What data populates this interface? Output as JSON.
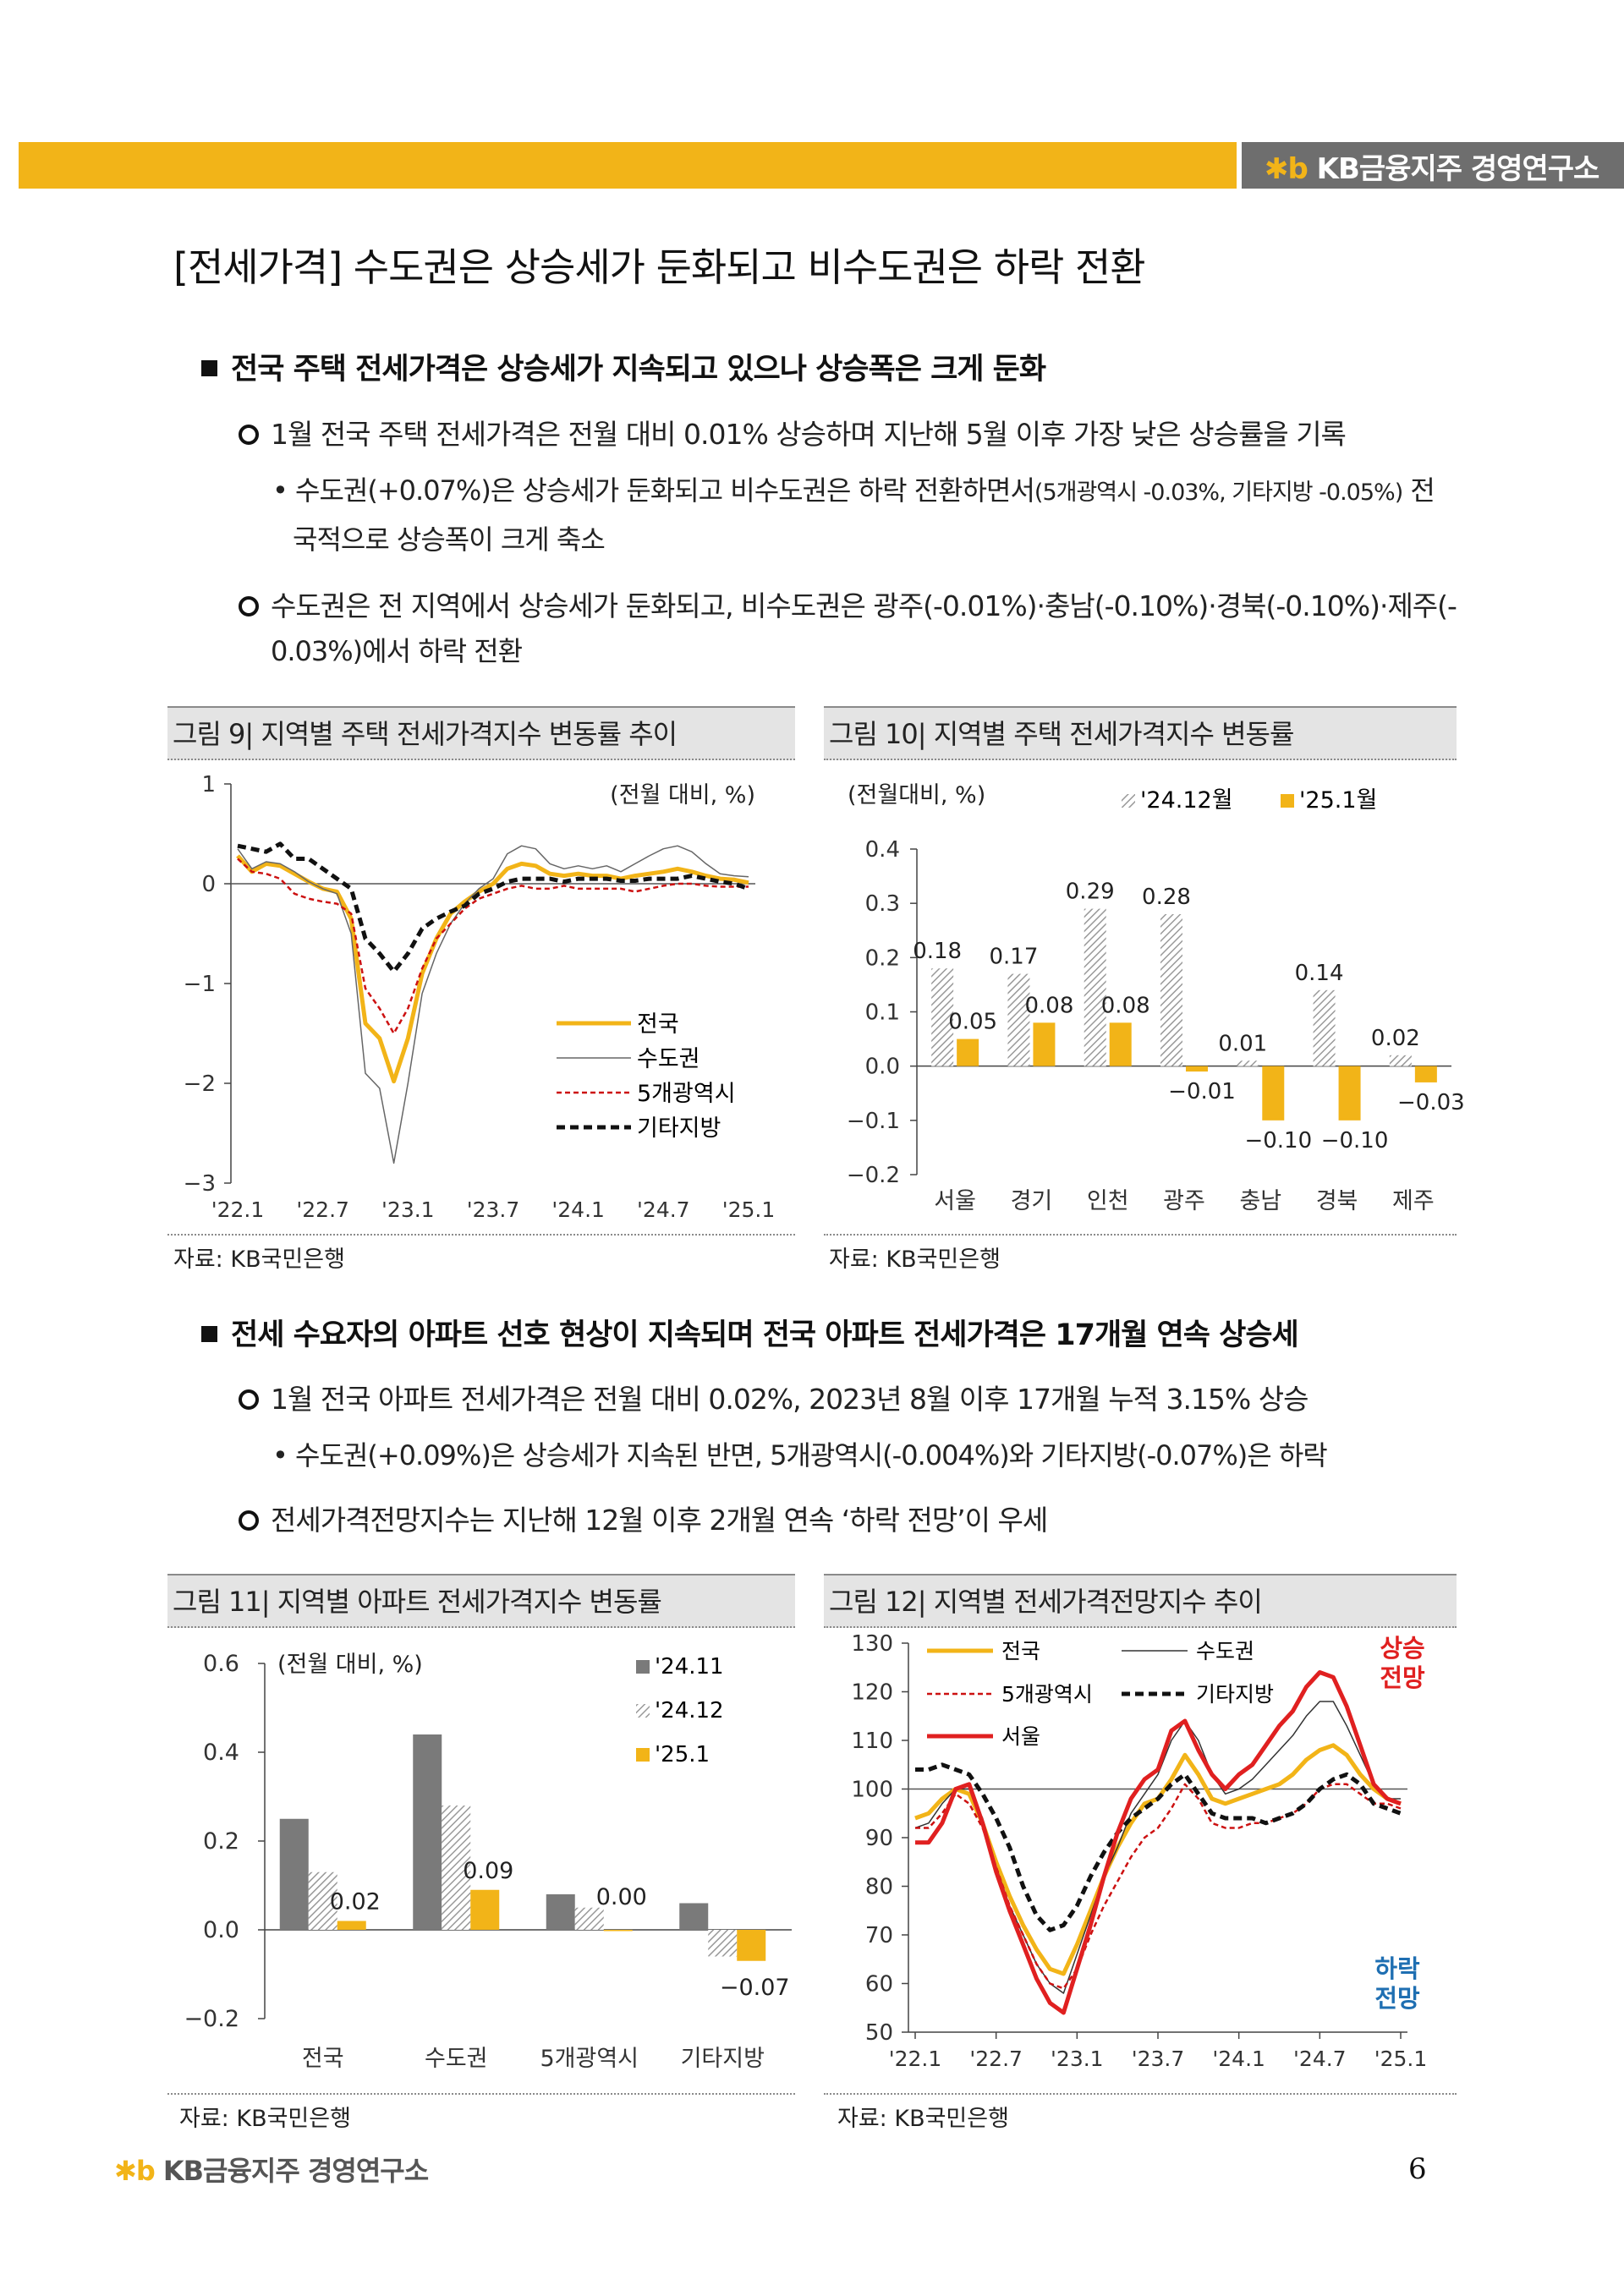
{
  "header": {
    "brand": "KB금융지주 경영연구소",
    "brand_mark": "✱b"
  },
  "page": {
    "title": "[전세가격] 수도권은 상승세가 둔화되고 비수도권은 하락 전환",
    "number": "6"
  },
  "section1": {
    "heading": "전국 주택 전세가격은 상승세가 지속되고 있으나 상승폭은 크게 둔화",
    "bullet1": "1월 전국 주택 전세가격은 전월 대비 0.01% 상승하며 지난해 5월 이후 가장 낮은 상승률을 기록",
    "sub1_line1_a": "• 수도권(+0.07%)은 상승세가 둔화되고 비수도권은 하락 전환하면서",
    "sub1_line1_b": "(5개광역시 -0.03%, 기타지방 -0.05%)",
    "sub1_line1_c": " 전",
    "sub1_line2": "국적으로 상승폭이 크게 축소",
    "bullet2_line1": "수도권은 전 지역에서 상승세가 둔화되고, 비수도권은 광주(-0.01%)·충남(-0.10%)·경북(-0.10%)·제주(-",
    "bullet2_line2": "0.03%)에서 하락 전환"
  },
  "fig9": {
    "caption": "그림 9| 지역별 주택 전세가격지수 변동률 추이",
    "unit": "(전월 대비, %)",
    "source": "자료: KB국민은행",
    "legend": [
      "전국",
      "수도권",
      "5개광역시",
      "기타지방"
    ]
  },
  "fig10": {
    "caption": "그림 10| 지역별 주택 전세가격지수 변동률",
    "unit": "(전월대비, %)",
    "source": "자료: KB국민은행",
    "legend": [
      "'24.12월",
      "'25.1월"
    ]
  },
  "section2": {
    "heading": "전세 수요자의 아파트 선호 현상이 지속되며 전국 아파트 전세가격은 17개월 연속 상승세",
    "bullet1": "1월 전국 아파트 전세가격은 전월 대비 0.02%, 2023년 8월 이후 17개월 누적 3.15% 상승",
    "sub1": "• 수도권(+0.09%)은 상승세가 지속된 반면, 5개광역시(-0.004%)와 기타지방(-0.07%)은 하락",
    "bullet2": "전세가격전망지수는 지난해 12월 이후 2개월 연속 ‘하락 전망’이 우세"
  },
  "fig11": {
    "caption": "그림 11| 지역별 아파트 전세가격지수 변동률",
    "unit": "(전월 대비, %)",
    "source": "자료: KB국민은행",
    "legend": [
      "'24.11",
      "'24.12",
      "'25.1"
    ]
  },
  "fig12": {
    "caption": "그림 12| 지역별 전세가격전망지수 추이",
    "source": "자료: KB국민은행",
    "legend": [
      "전국",
      "수도권",
      "5개광역시",
      "기타지방",
      "서울"
    ],
    "up_label": [
      "상승",
      "전망"
    ],
    "down_label": [
      "하락",
      "전망"
    ]
  },
  "footer": {
    "brand": "KB금융지주 경영연구소",
    "brand_mark": "✱b"
  },
  "colors": {
    "accent": "#F2B418",
    "red": "#E02020",
    "blue": "#1F6FB2"
  },
  "chart_data": [
    {
      "id": "fig9",
      "type": "line",
      "ylim": [
        -3,
        1
      ],
      "yticks": [
        1,
        0,
        -1,
        -2,
        -3
      ],
      "xticklabels": [
        "'22.1",
        "'22.7",
        "'23.1",
        "'23.7",
        "'24.1",
        "'24.7",
        "'25.1"
      ],
      "x": [
        "22.1",
        "22.2",
        "22.3",
        "22.4",
        "22.5",
        "22.6",
        "22.7",
        "22.8",
        "22.9",
        "22.10",
        "22.11",
        "22.12",
        "23.1",
        "23.2",
        "23.3",
        "23.4",
        "23.5",
        "23.6",
        "23.7",
        "23.8",
        "23.9",
        "23.10",
        "23.11",
        "23.12",
        "24.1",
        "24.2",
        "24.3",
        "24.4",
        "24.5",
        "24.6",
        "24.7",
        "24.8",
        "24.9",
        "24.10",
        "24.11",
        "24.12",
        "25.1"
      ],
      "series": [
        {
          "name": "전국",
          "values": [
            0.28,
            0.12,
            0.2,
            0.18,
            0.1,
            0.02,
            -0.05,
            -0.08,
            -0.35,
            -1.4,
            -1.55,
            -1.98,
            -1.55,
            -0.9,
            -0.55,
            -0.3,
            -0.18,
            -0.08,
            0.0,
            0.15,
            0.2,
            0.18,
            0.1,
            0.08,
            0.1,
            0.08,
            0.08,
            0.05,
            0.08,
            0.1,
            0.12,
            0.15,
            0.12,
            0.08,
            0.05,
            0.04,
            0.01
          ]
        },
        {
          "name": "수도권",
          "values": [
            0.35,
            0.15,
            0.22,
            0.2,
            0.12,
            0.02,
            -0.05,
            -0.1,
            -0.5,
            -1.9,
            -2.05,
            -2.8,
            -2.0,
            -1.1,
            -0.7,
            -0.4,
            -0.2,
            -0.05,
            0.05,
            0.3,
            0.38,
            0.35,
            0.2,
            0.15,
            0.18,
            0.15,
            0.18,
            0.12,
            0.2,
            0.28,
            0.35,
            0.38,
            0.32,
            0.2,
            0.1,
            0.08,
            0.07
          ]
        },
        {
          "name": "5개광역시",
          "values": [
            0.25,
            0.12,
            0.1,
            0.05,
            -0.1,
            -0.15,
            -0.18,
            -0.2,
            -0.3,
            -1.05,
            -1.25,
            -1.5,
            -1.25,
            -0.85,
            -0.55,
            -0.4,
            -0.25,
            -0.15,
            -0.1,
            -0.05,
            -0.02,
            -0.05,
            -0.05,
            -0.02,
            -0.05,
            -0.05,
            -0.05,
            -0.05,
            -0.08,
            -0.05,
            -0.02,
            0.0,
            0.0,
            -0.02,
            -0.03,
            -0.03,
            -0.03
          ]
        },
        {
          "name": "기타지방",
          "values": [
            0.38,
            0.35,
            0.32,
            0.4,
            0.25,
            0.25,
            0.15,
            0.05,
            -0.05,
            -0.55,
            -0.7,
            -0.88,
            -0.7,
            -0.45,
            -0.35,
            -0.28,
            -0.22,
            -0.1,
            -0.05,
            0.02,
            0.05,
            0.05,
            0.05,
            0.02,
            0.05,
            0.05,
            0.05,
            0.03,
            0.03,
            0.05,
            0.05,
            0.05,
            0.08,
            0.05,
            0.02,
            0.0,
            -0.05
          ]
        }
      ]
    },
    {
      "id": "fig10",
      "type": "bar",
      "ylim": [
        -0.2,
        0.4
      ],
      "yticks": [
        "0.4",
        "0.3",
        "0.2",
        "0.1",
        "0.0",
        "-0.1",
        "-0.2"
      ],
      "categories": [
        "서울",
        "경기",
        "인천",
        "광주",
        "충남",
        "경북",
        "제주"
      ],
      "series": [
        {
          "name": "'24.12월",
          "values": [
            0.18,
            0.17,
            0.29,
            0.28,
            0.01,
            0.14,
            0.02
          ],
          "labels": [
            "0.18",
            "0.17",
            "0.29",
            "0.28",
            "0.01",
            "0.14",
            "0.02"
          ]
        },
        {
          "name": "'25.1월",
          "values": [
            0.05,
            0.08,
            0.08,
            -0.01,
            -0.1,
            -0.1,
            -0.03
          ],
          "labels": [
            "0.05",
            "0.08",
            "0.08",
            "-0.01",
            "-0.10",
            "-0.10",
            "-0.03"
          ]
        }
      ]
    },
    {
      "id": "fig11",
      "type": "bar",
      "ylim": [
        -0.2,
        0.6
      ],
      "yticks": [
        "0.6",
        "0.4",
        "0.2",
        "0.0",
        "-0.2"
      ],
      "categories": [
        "전국",
        "수도권",
        "5개광역시",
        "기타지방"
      ],
      "series": [
        {
          "name": "'24.11",
          "values": [
            0.25,
            0.44,
            0.08,
            0.06
          ]
        },
        {
          "name": "'24.12",
          "values": [
            0.13,
            0.28,
            0.05,
            -0.06
          ]
        },
        {
          "name": "'25.1",
          "values": [
            0.02,
            0.09,
            0.0,
            -0.07
          ],
          "labels": [
            "0.02",
            "0.09",
            "0.00",
            "-0.07"
          ]
        }
      ]
    },
    {
      "id": "fig12",
      "type": "line",
      "ylim": [
        50,
        130
      ],
      "yticks": [
        130,
        120,
        110,
        100,
        90,
        80,
        70,
        60,
        50
      ],
      "xticklabels": [
        "'22.1",
        "'22.7",
        "'23.1",
        "'23.7",
        "'24.1",
        "'24.7",
        "'25.1"
      ],
      "x": [
        "22.1",
        "22.2",
        "22.3",
        "22.4",
        "22.5",
        "22.6",
        "22.7",
        "22.8",
        "22.9",
        "22.10",
        "22.11",
        "22.12",
        "23.1",
        "23.2",
        "23.3",
        "23.4",
        "23.5",
        "23.6",
        "23.7",
        "23.8",
        "23.9",
        "23.10",
        "23.11",
        "23.12",
        "24.1",
        "24.2",
        "24.3",
        "24.4",
        "24.5",
        "24.6",
        "24.7",
        "24.8",
        "24.9",
        "24.10",
        "24.11",
        "24.12",
        "25.1"
      ],
      "series": [
        {
          "name": "전국",
          "values": [
            94,
            95,
            98,
            100,
            99,
            93,
            85,
            78,
            72,
            67,
            63,
            62,
            68,
            75,
            82,
            88,
            93,
            97,
            98,
            102,
            107,
            103,
            98,
            97,
            98,
            99,
            100,
            101,
            103,
            106,
            108,
            109,
            107,
            103,
            100,
            98,
            97
          ]
        },
        {
          "name": "수도권",
          "values": [
            92,
            93,
            97,
            100,
            100,
            94,
            84,
            76,
            70,
            64,
            60,
            58,
            66,
            74,
            82,
            88,
            95,
            99,
            103,
            110,
            114,
            110,
            103,
            99,
            100,
            102,
            105,
            108,
            111,
            115,
            118,
            118,
            113,
            107,
            101,
            98,
            98
          ]
        },
        {
          "name": "5개광역시",
          "values": [
            92,
            92,
            95,
            99,
            97,
            92,
            84,
            76,
            70,
            64,
            60,
            59,
            63,
            70,
            76,
            81,
            86,
            90,
            92,
            96,
            101,
            98,
            93,
            92,
            92,
            93,
            93,
            94,
            95,
            97,
            100,
            101,
            101,
            99,
            97,
            97,
            96
          ]
        },
        {
          "name": "기타지방",
          "values": [
            104,
            104,
            105,
            104,
            103,
            99,
            94,
            88,
            80,
            74,
            71,
            72,
            76,
            82,
            87,
            91,
            94,
            96,
            98,
            101,
            103,
            99,
            95,
            94,
            94,
            94,
            93,
            94,
            95,
            97,
            100,
            102,
            103,
            101,
            97,
            96,
            95
          ]
        },
        {
          "name": "서울",
          "values": [
            89,
            89,
            93,
            100,
            101,
            93,
            83,
            75,
            68,
            61,
            56,
            54,
            63,
            72,
            82,
            91,
            98,
            102,
            104,
            112,
            114,
            108,
            103,
            100,
            103,
            105,
            109,
            113,
            116,
            121,
            124,
            123,
            117,
            109,
            101,
            98,
            97
          ]
        }
      ]
    }
  ]
}
